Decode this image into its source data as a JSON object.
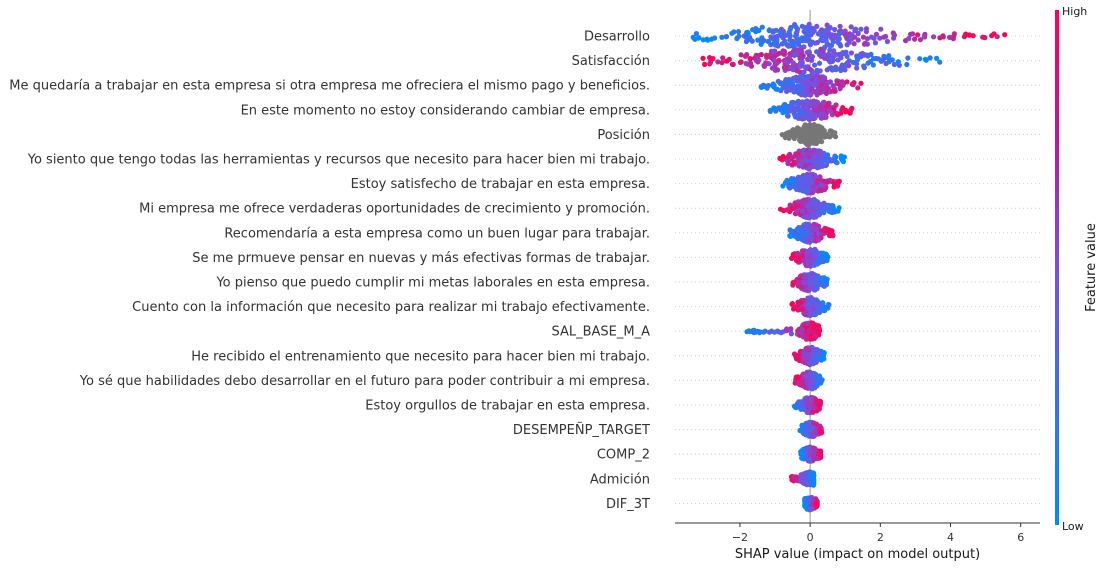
{
  "chart_data": {
    "type": "beeswarm",
    "xlabel": "SHAP value (impact on model output)",
    "xticks": [
      -2,
      0,
      2,
      4,
      6
    ],
    "xlim": [
      -3.85,
      6.55
    ],
    "grid": false,
    "colorbar": {
      "title": "Feature value",
      "high_label": "High",
      "low_label": "Low",
      "low_color": "#008bfb",
      "high_color": "#ff0052"
    },
    "features": [
      {
        "name": "Desarrollo",
        "min": -3.4,
        "max": 5.8,
        "spread": 1.0,
        "gray": false,
        "direction": 1
      },
      {
        "name": "Satisfacción",
        "min": -3.5,
        "max": 3.7,
        "spread": 0.95,
        "gray": false,
        "direction": -1
      },
      {
        "name": "Me quedaría a trabajar en esta empresa si otra empresa me ofreciera el mismo pago y beneficios.",
        "min": -1.4,
        "max": 1.5,
        "spread": 0.7,
        "gray": false,
        "direction": 1
      },
      {
        "name": "En este momento no estoy considerando cambiar de empresa.",
        "min": -1.2,
        "max": 1.2,
        "spread": 0.7,
        "gray": false,
        "direction": 1
      },
      {
        "name": "Posición",
        "min": -0.8,
        "max": 0.75,
        "spread": 0.7,
        "gray": true,
        "direction": 0
      },
      {
        "name": "Yo siento que tengo todas las herramientas y recursos que necesito para hacer bien mi trabajo.",
        "min": -0.9,
        "max": 1.0,
        "spread": 0.65,
        "gray": false,
        "direction": -1
      },
      {
        "name": "Estoy satisfecho de trabajar en esta empresa.",
        "min": -0.8,
        "max": 0.85,
        "spread": 0.6,
        "gray": false,
        "direction": 1
      },
      {
        "name": "Mi empresa me ofrece verdaderas oportunidades de crecimiento y promoción.",
        "min": -0.85,
        "max": 0.85,
        "spread": 0.6,
        "gray": false,
        "direction": -1
      },
      {
        "name": "Recomendaría a esta empresa como un buen lugar para trabajar.",
        "min": -0.65,
        "max": 0.65,
        "spread": 0.6,
        "gray": false,
        "direction": 1
      },
      {
        "name": "Se me prmueve pensar en nuevas y más efectivas formas de trabajar.",
        "min": -0.55,
        "max": 0.55,
        "spread": 0.55,
        "gray": false,
        "direction": -1
      },
      {
        "name": "Yo pienso que puedo cumplir mi metas laborales en esta empresa.",
        "min": -0.55,
        "max": 0.55,
        "spread": 0.55,
        "gray": false,
        "direction": -1
      },
      {
        "name": "Cuento con la información que necesito para realizar mi trabajo efectivamente.",
        "min": -0.55,
        "max": 0.55,
        "spread": 0.55,
        "gray": false,
        "direction": -1
      },
      {
        "name": "SAL_BASE_M_A",
        "min": -1.8,
        "max": 0.3,
        "spread": 0.45,
        "gray": false,
        "direction": 1
      },
      {
        "name": "He recibido el entrenamiento que necesito para hacer bien mi trabajo.",
        "min": -0.45,
        "max": 0.4,
        "spread": 0.5,
        "gray": false,
        "direction": -1
      },
      {
        "name": "Yo sé que habilidades debo desarrollar en el futuro para poder contribuir a mi empresa.",
        "min": -0.45,
        "max": 0.4,
        "spread": 0.5,
        "gray": false,
        "direction": -1
      },
      {
        "name": "Estoy orgullos de trabajar en esta empresa.",
        "min": -0.45,
        "max": 0.3,
        "spread": 0.4,
        "gray": false,
        "direction": 1
      },
      {
        "name": "DESEMPEÑP_TARGET",
        "min": -0.3,
        "max": 0.35,
        "spread": 0.35,
        "gray": false,
        "direction": 1
      },
      {
        "name": "COMP_2",
        "min": -0.3,
        "max": 0.3,
        "spread": 0.3,
        "gray": false,
        "direction": 1
      },
      {
        "name": "Admición",
        "min": -0.55,
        "max": 0.1,
        "spread": 0.25,
        "gray": false,
        "direction": -1
      },
      {
        "name": "DIF_3T",
        "min": -0.15,
        "max": 0.2,
        "spread": 0.25,
        "gray": false,
        "direction": 1
      }
    ]
  }
}
